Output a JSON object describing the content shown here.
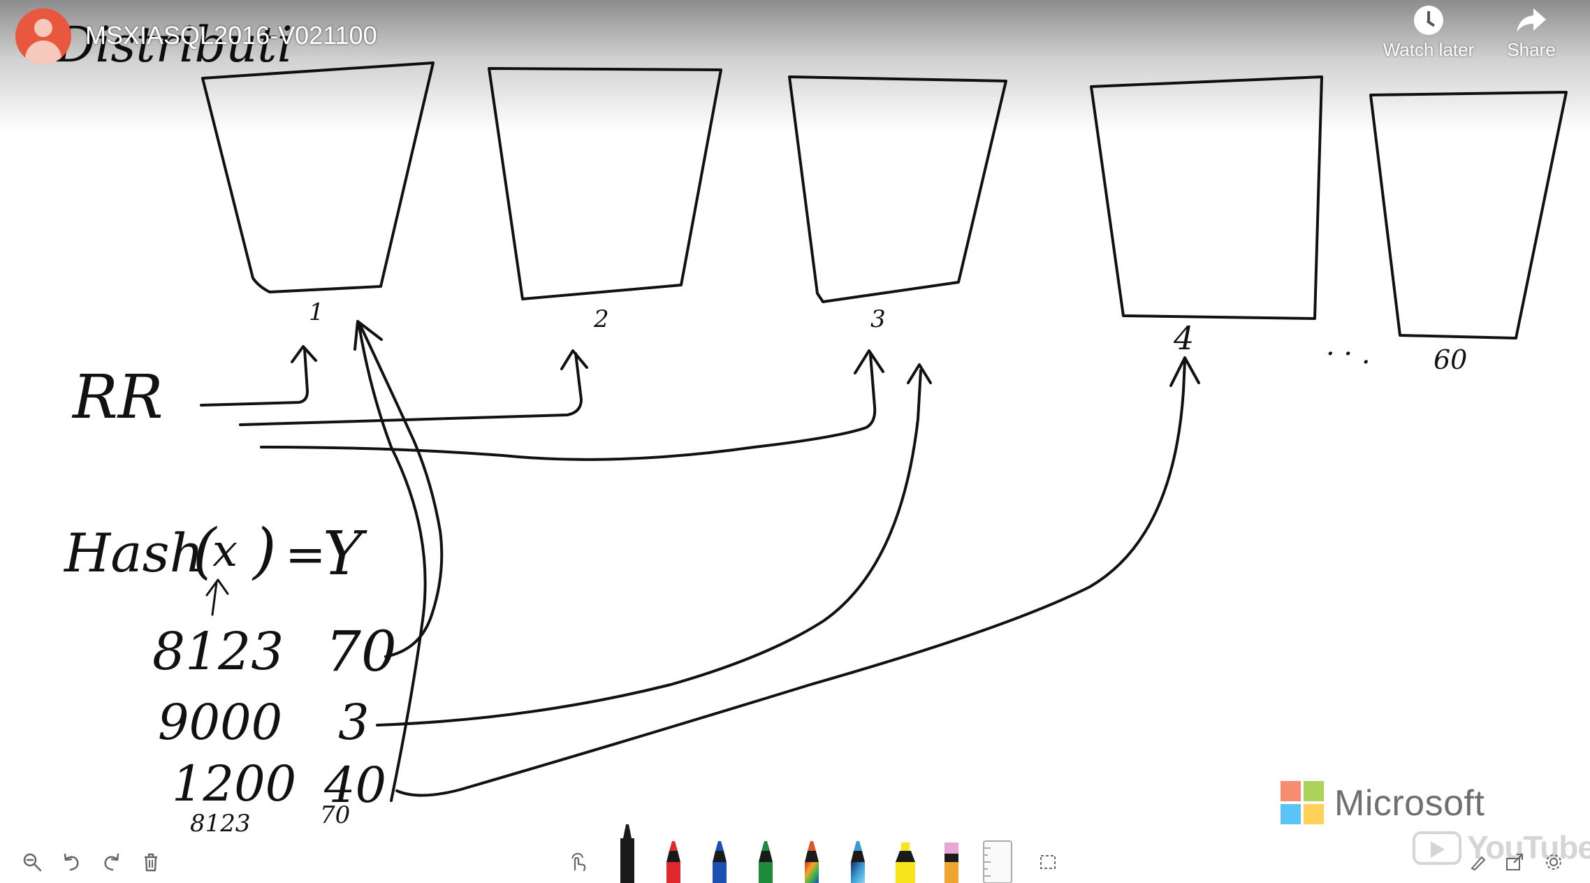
{
  "video": {
    "title": "MSXIASQL2016-V021100",
    "actions": [
      {
        "label": "Watch later",
        "icon": "clock-icon"
      },
      {
        "label": "Share",
        "icon": "share-arrow-icon"
      }
    ]
  },
  "whiteboard": {
    "heading_fragment": "Distributi",
    "bucket_labels": [
      "1",
      "2",
      "3",
      "4",
      "60"
    ],
    "ellipsis": "· · .",
    "round_robin_label": "RR",
    "hash_formula": {
      "prefix": "Hash",
      "arg": "x",
      "result": "Y"
    },
    "hash_rows": [
      {
        "input": "8123",
        "output": "70"
      },
      {
        "input": "9000",
        "output": "3"
      },
      {
        "input": "1200",
        "output": "40"
      }
    ],
    "footnote": {
      "input": "8123",
      "output": "70"
    }
  },
  "branding": {
    "company": "Microsoft",
    "colors": {
      "red": "#f25022",
      "green": "#7fba00",
      "blue": "#00a4ef",
      "yellow": "#ffb900"
    },
    "watermark": "YouTube"
  },
  "toolbar": {
    "left_icons": [
      "zoom-out-icon",
      "undo-icon",
      "redo-icon",
      "delete-icon"
    ],
    "pens": [
      {
        "name": "pen-black",
        "color": "#1a1a1a"
      },
      {
        "name": "pen-red",
        "color": "#e0282e"
      },
      {
        "name": "pen-blue",
        "color": "#1a4fb3"
      },
      {
        "name": "pen-green",
        "color": "#1e8a3c"
      },
      {
        "name": "pen-rainbow",
        "color": "#d9572b"
      },
      {
        "name": "pen-galaxy",
        "color": "#3a9bd4"
      },
      {
        "name": "highlighter-yellow",
        "color": "#f7e41b"
      },
      {
        "name": "eraser",
        "color": "#e9a6d4"
      }
    ]
  }
}
